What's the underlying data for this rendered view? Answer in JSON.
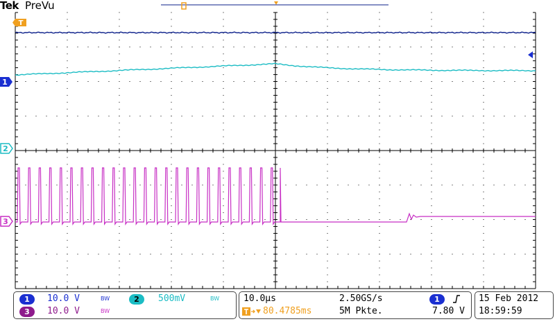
{
  "header": {
    "brand": "Tek",
    "mode": "PreVu"
  },
  "colors": {
    "ch1": "#0b1f8a",
    "ch1_badge": "#1a2fd1",
    "ch2": "#1bbcc4",
    "ch3": "#c72fc4",
    "ch3_badge": "#8e1b8c",
    "trigger": "#f0a020",
    "grid": "#000000"
  },
  "markers": {
    "trigger_marker": "T",
    "ch1_marker": "1",
    "ch2_marker": "2",
    "ch3_marker": "3",
    "trigger_level_icon": "arrow-left-icon"
  },
  "status": {
    "ch1": {
      "badge": "1",
      "scale": "10.0 V",
      "bw": "BW"
    },
    "ch2": {
      "badge": "2",
      "scale": "500mV",
      "bw": "BW"
    },
    "ch3": {
      "badge": "3",
      "scale": "10.0 V",
      "bw": "BW"
    },
    "timebase": "10.0µs",
    "sample_rate": "2.50GS/s",
    "trigger_position": "80.4785ms",
    "record_length": "5M Pkte.",
    "trigger_source_badge": "1",
    "trigger_slope_icon": "rising-edge-icon",
    "trigger_level": "7.80 V",
    "date": "15 Feb  2012",
    "time": "18:59:59"
  }
}
